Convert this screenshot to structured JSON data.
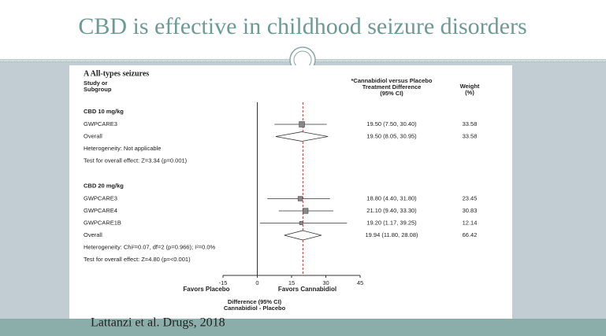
{
  "slide": {
    "title": "CBD is effective in childhood seizure disorders",
    "citation": "Lattanzi et al. Drugs, 2018"
  },
  "chart_data": {
    "type": "forest",
    "panel_title": "A All-types seizures",
    "study_header": [
      "Study or",
      "Subgroup"
    ],
    "effect_header": [
      "*Cannabidiol versus Placebo",
      "Treatment Difference",
      "(95% CI)"
    ],
    "weight_header": [
      "Weight",
      "(%)"
    ],
    "groups": [
      {
        "name": "CBD 10 mg/kg",
        "studies": [
          {
            "name": "GWPCARE3",
            "estimate": 19.5,
            "ci": [
              7.5,
              30.4
            ],
            "value_label": "19.50 (7.50, 30.40)",
            "weight": 33.58
          }
        ],
        "overall": {
          "name": "Overall",
          "estimate": 19.5,
          "ci": [
            8.05,
            30.95
          ],
          "value_label": "19.50 (8.05, 30.95)",
          "weight": 33.58
        },
        "heterogeneity": "Heterogeneity: Not applicable",
        "test": "Test for overall effect: Z=3.34 (p=0.001)"
      },
      {
        "name": "CBD 20 mg/kg",
        "studies": [
          {
            "name": "GWPCARE3",
            "estimate": 18.8,
            "ci": [
              4.4,
              31.8
            ],
            "value_label": "18.80 (4.40, 31.80)",
            "weight": 23.45
          },
          {
            "name": "GWPCARE4",
            "estimate": 21.1,
            "ci": [
              9.4,
              33.3
            ],
            "value_label": "21.10 (9.40, 33.30)",
            "weight": 30.83
          },
          {
            "name": "GWPCARE1B",
            "estimate": 19.2,
            "ci": [
              1.17,
              39.25
            ],
            "value_label": "19.20 (1.17, 39.25)",
            "weight": 12.14
          }
        ],
        "overall": {
          "name": "Overall",
          "estimate": 19.94,
          "ci": [
            11.8,
            28.08
          ],
          "value_label": "19.94 (11.80, 28.08)",
          "weight": 66.42
        },
        "heterogeneity": "Heterogeneity: Chi²=0.07, df=2 (p=0.966); I²=0.0%",
        "test": "Test for overall effect: Z=4.80 (p=<0.001)"
      }
    ],
    "reference_line": 19.94,
    "xlim": [
      -15,
      45
    ],
    "xticks": [
      -15,
      0,
      15,
      30,
      45
    ],
    "favors_left": "Favors Placebo",
    "favors_right": "Favors Cannabidiol",
    "xlabel": [
      "Difference (95% CI)",
      "Cannabidiol - Placebo"
    ]
  }
}
